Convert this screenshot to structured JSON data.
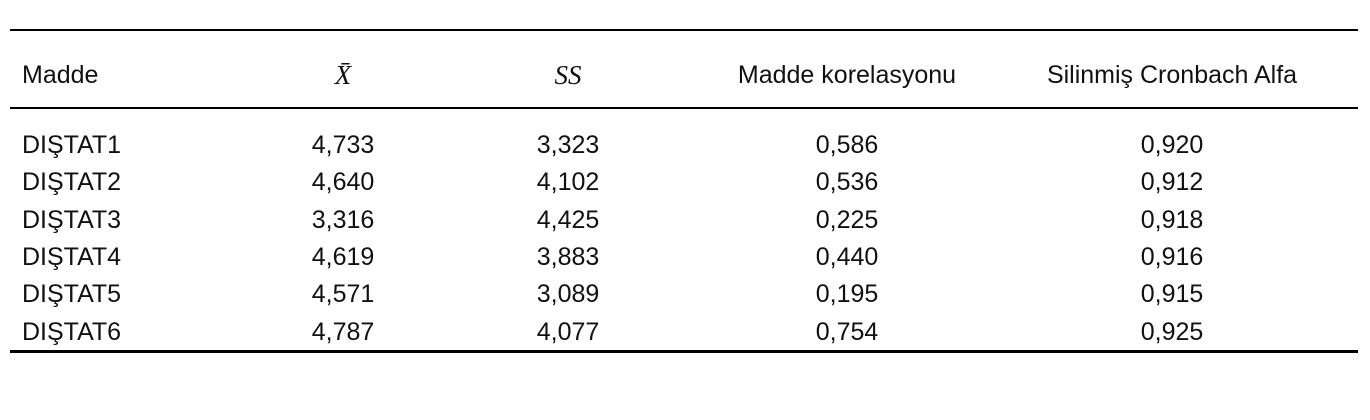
{
  "table": {
    "header": [
      "Madde",
      "X̄",
      "SS",
      "Madde korelasyonu",
      "Silinmiş Cronbach Alfa"
    ],
    "rows": [
      [
        "DIŞTAT1",
        "4,733",
        "3,323",
        "0,586",
        "0,920"
      ],
      [
        "DIŞTAT2",
        "4,640",
        "4,102",
        "0,536",
        "0,912"
      ],
      [
        "DIŞTAT3",
        "3,316",
        "4,425",
        "0,225",
        "0,918"
      ],
      [
        "DIŞTAT4",
        "4,619",
        "3,883",
        "0,440",
        "0,916"
      ],
      [
        "DIŞTAT5",
        "4,571",
        "3,089",
        "0,195",
        "0,915"
      ],
      [
        "DIŞTAT6",
        "4,787",
        "4,077",
        "0,754",
        "0,925"
      ]
    ]
  }
}
